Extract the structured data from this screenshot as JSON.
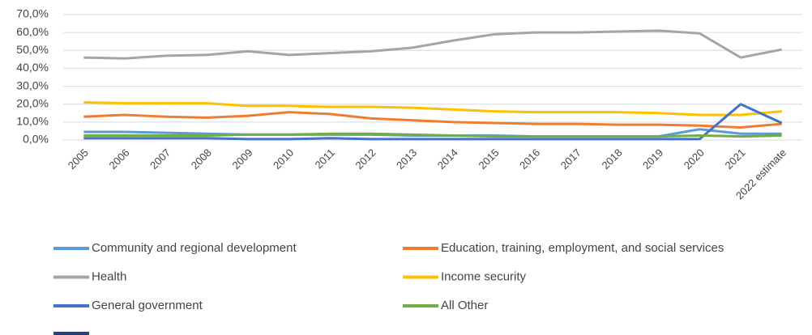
{
  "chart_data": {
    "type": "line",
    "categories": [
      "2005",
      "2006",
      "2007",
      "2008",
      "2009",
      "2010",
      "2011",
      "2012",
      "2013",
      "2014",
      "2015",
      "2016",
      "2017",
      "2018",
      "2019",
      "2020",
      "2021",
      "2022 estimate"
    ],
    "series": [
      {
        "name": "Community and regional development",
        "color": "#5b9bd5",
        "values": [
          4.5,
          4.5,
          4,
          3.5,
          3,
          3,
          3,
          3,
          2.5,
          2.5,
          2.5,
          2,
          2,
          2,
          2,
          6,
          3.5,
          3.5
        ]
      },
      {
        "name": "Education, training, employment, and social services",
        "color": "#ed7d31",
        "values": [
          13,
          14,
          13,
          12.5,
          13.5,
          15.5,
          14.5,
          12,
          11,
          10,
          9.5,
          9,
          9,
          8.5,
          8.5,
          8,
          7,
          9
        ]
      },
      {
        "name": "Health",
        "color": "#a5a5a5",
        "values": [
          46,
          45.5,
          47,
          47.5,
          49.5,
          47.5,
          48.5,
          49.5,
          51.5,
          55.5,
          59,
          60,
          60,
          60.5,
          61,
          59.5,
          46,
          50.5
        ]
      },
      {
        "name": "Income security",
        "color": "#ffc000",
        "values": [
          21,
          20.5,
          20.5,
          20.5,
          19,
          19,
          18.5,
          18.5,
          18,
          17,
          16,
          15.5,
          15.5,
          15.5,
          15,
          14,
          14,
          16
        ]
      },
      {
        "name": "General government",
        "color": "#4472c4",
        "values": [
          1,
          1,
          1,
          1,
          0.5,
          0.5,
          1,
          0.5,
          0.5,
          0.5,
          0.5,
          0.5,
          0.5,
          0.5,
          0.5,
          0.5,
          20,
          9.5
        ]
      },
      {
        "name": "All Other",
        "color": "#70ad47",
        "values": [
          2.5,
          2.5,
          2.5,
          2.5,
          3,
          3,
          3.5,
          3.5,
          3,
          2.5,
          2,
          2,
          2,
          2,
          2,
          2.5,
          2,
          2.5
        ]
      }
    ],
    "ylim": [
      0,
      70
    ],
    "yticks": [
      {
        "value": 0,
        "label": "0,0%"
      },
      {
        "value": 10,
        "label": "10,0%"
      },
      {
        "value": 20,
        "label": "20,0%"
      },
      {
        "value": 30,
        "label": "30,0%"
      },
      {
        "value": 40,
        "label": "40,0%"
      },
      {
        "value": 50,
        "label": "50,0%"
      },
      {
        "value": 60,
        "label": "60,0%"
      },
      {
        "value": 70,
        "label": "70,0%"
      }
    ],
    "grid": true
  }
}
